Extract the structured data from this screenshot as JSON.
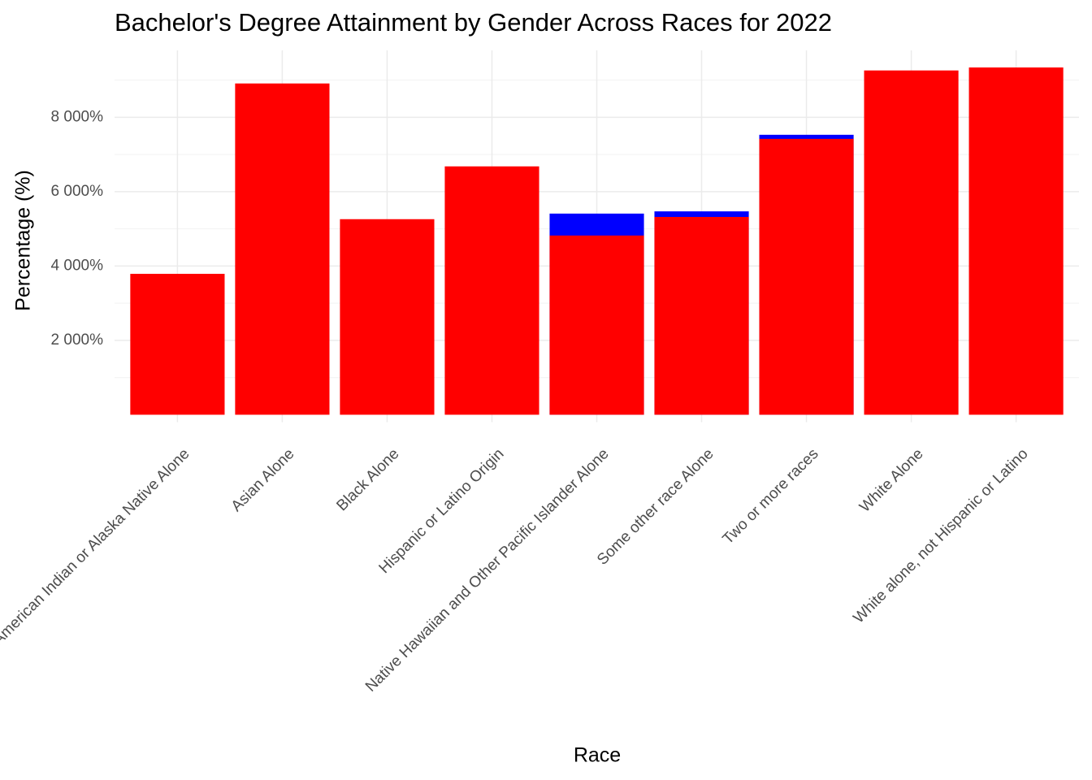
{
  "chart_data": {
    "type": "bar",
    "title": "Bachelor's Degree Attainment by Gender Across Races for 2022",
    "x_label": "Race",
    "y_label": "Percentage (%)",
    "categories": [
      "American Indian or Alaska Native Alone",
      "Asian Alone",
      "Black Alone",
      "Hispanic or Latino Origin",
      "Native Hawaiian and Other Pacific Islander Alone",
      "Some other race Alone",
      "Two or more races",
      "White Alone",
      "White alone, not Hispanic or Latino"
    ],
    "series": [
      {
        "color": "#0000ff",
        "values": [
          null,
          null,
          null,
          null,
          5410,
          5470,
          7530,
          null,
          null
        ]
      },
      {
        "color": "#ff0000",
        "values": [
          3790,
          8910,
          5260,
          6680,
          4820,
          5320,
          7420,
          9260,
          9340
        ]
      }
    ],
    "ylim": [
      -200,
      9800
    ],
    "yticks": [
      {
        "value": 2000,
        "label": "2 000%"
      },
      {
        "value": 4000,
        "label": "4 000%"
      },
      {
        "value": 6000,
        "label": "6 000%"
      },
      {
        "value": 8000,
        "label": "8 000%"
      }
    ],
    "y_minor_ticks": [
      1000,
      3000,
      5000,
      7000,
      9000
    ],
    "grid": true
  }
}
